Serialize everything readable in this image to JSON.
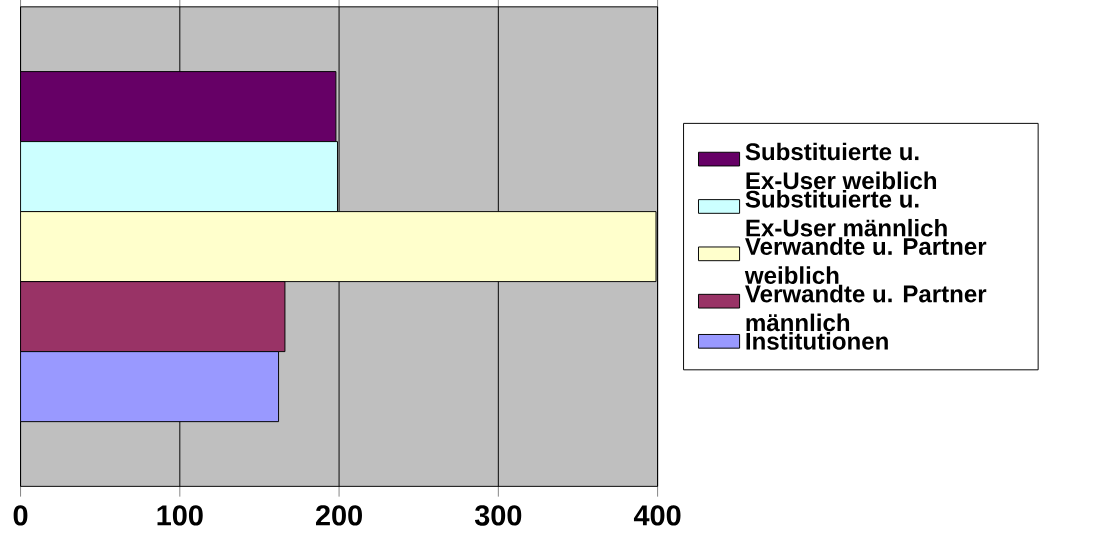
{
  "chart_data": {
    "type": "bar",
    "orientation": "horizontal",
    "categories": [
      null
    ],
    "series": [
      {
        "name": "Substituierte u. Ex-User weiblich",
        "color": "#660066",
        "values": [
          198
        ]
      },
      {
        "name": "Substituierte u. Ex-User männlich",
        "color": "#ccffff",
        "values": [
          199
        ]
      },
      {
        "name": "Verwandte u. Partner weiblich",
        "color": "#ffffcc",
        "values": [
          399
        ]
      },
      {
        "name": "Verwandte u. Partner männlich",
        "color": "#993366",
        "values": [
          166
        ]
      },
      {
        "name": "Institutionen",
        "color": "#9999ff",
        "values": [
          162
        ]
      }
    ],
    "xlim": [
      0,
      400
    ],
    "xticks": [
      0,
      100,
      200,
      300,
      400
    ],
    "grid": "x",
    "legend": "right"
  }
}
